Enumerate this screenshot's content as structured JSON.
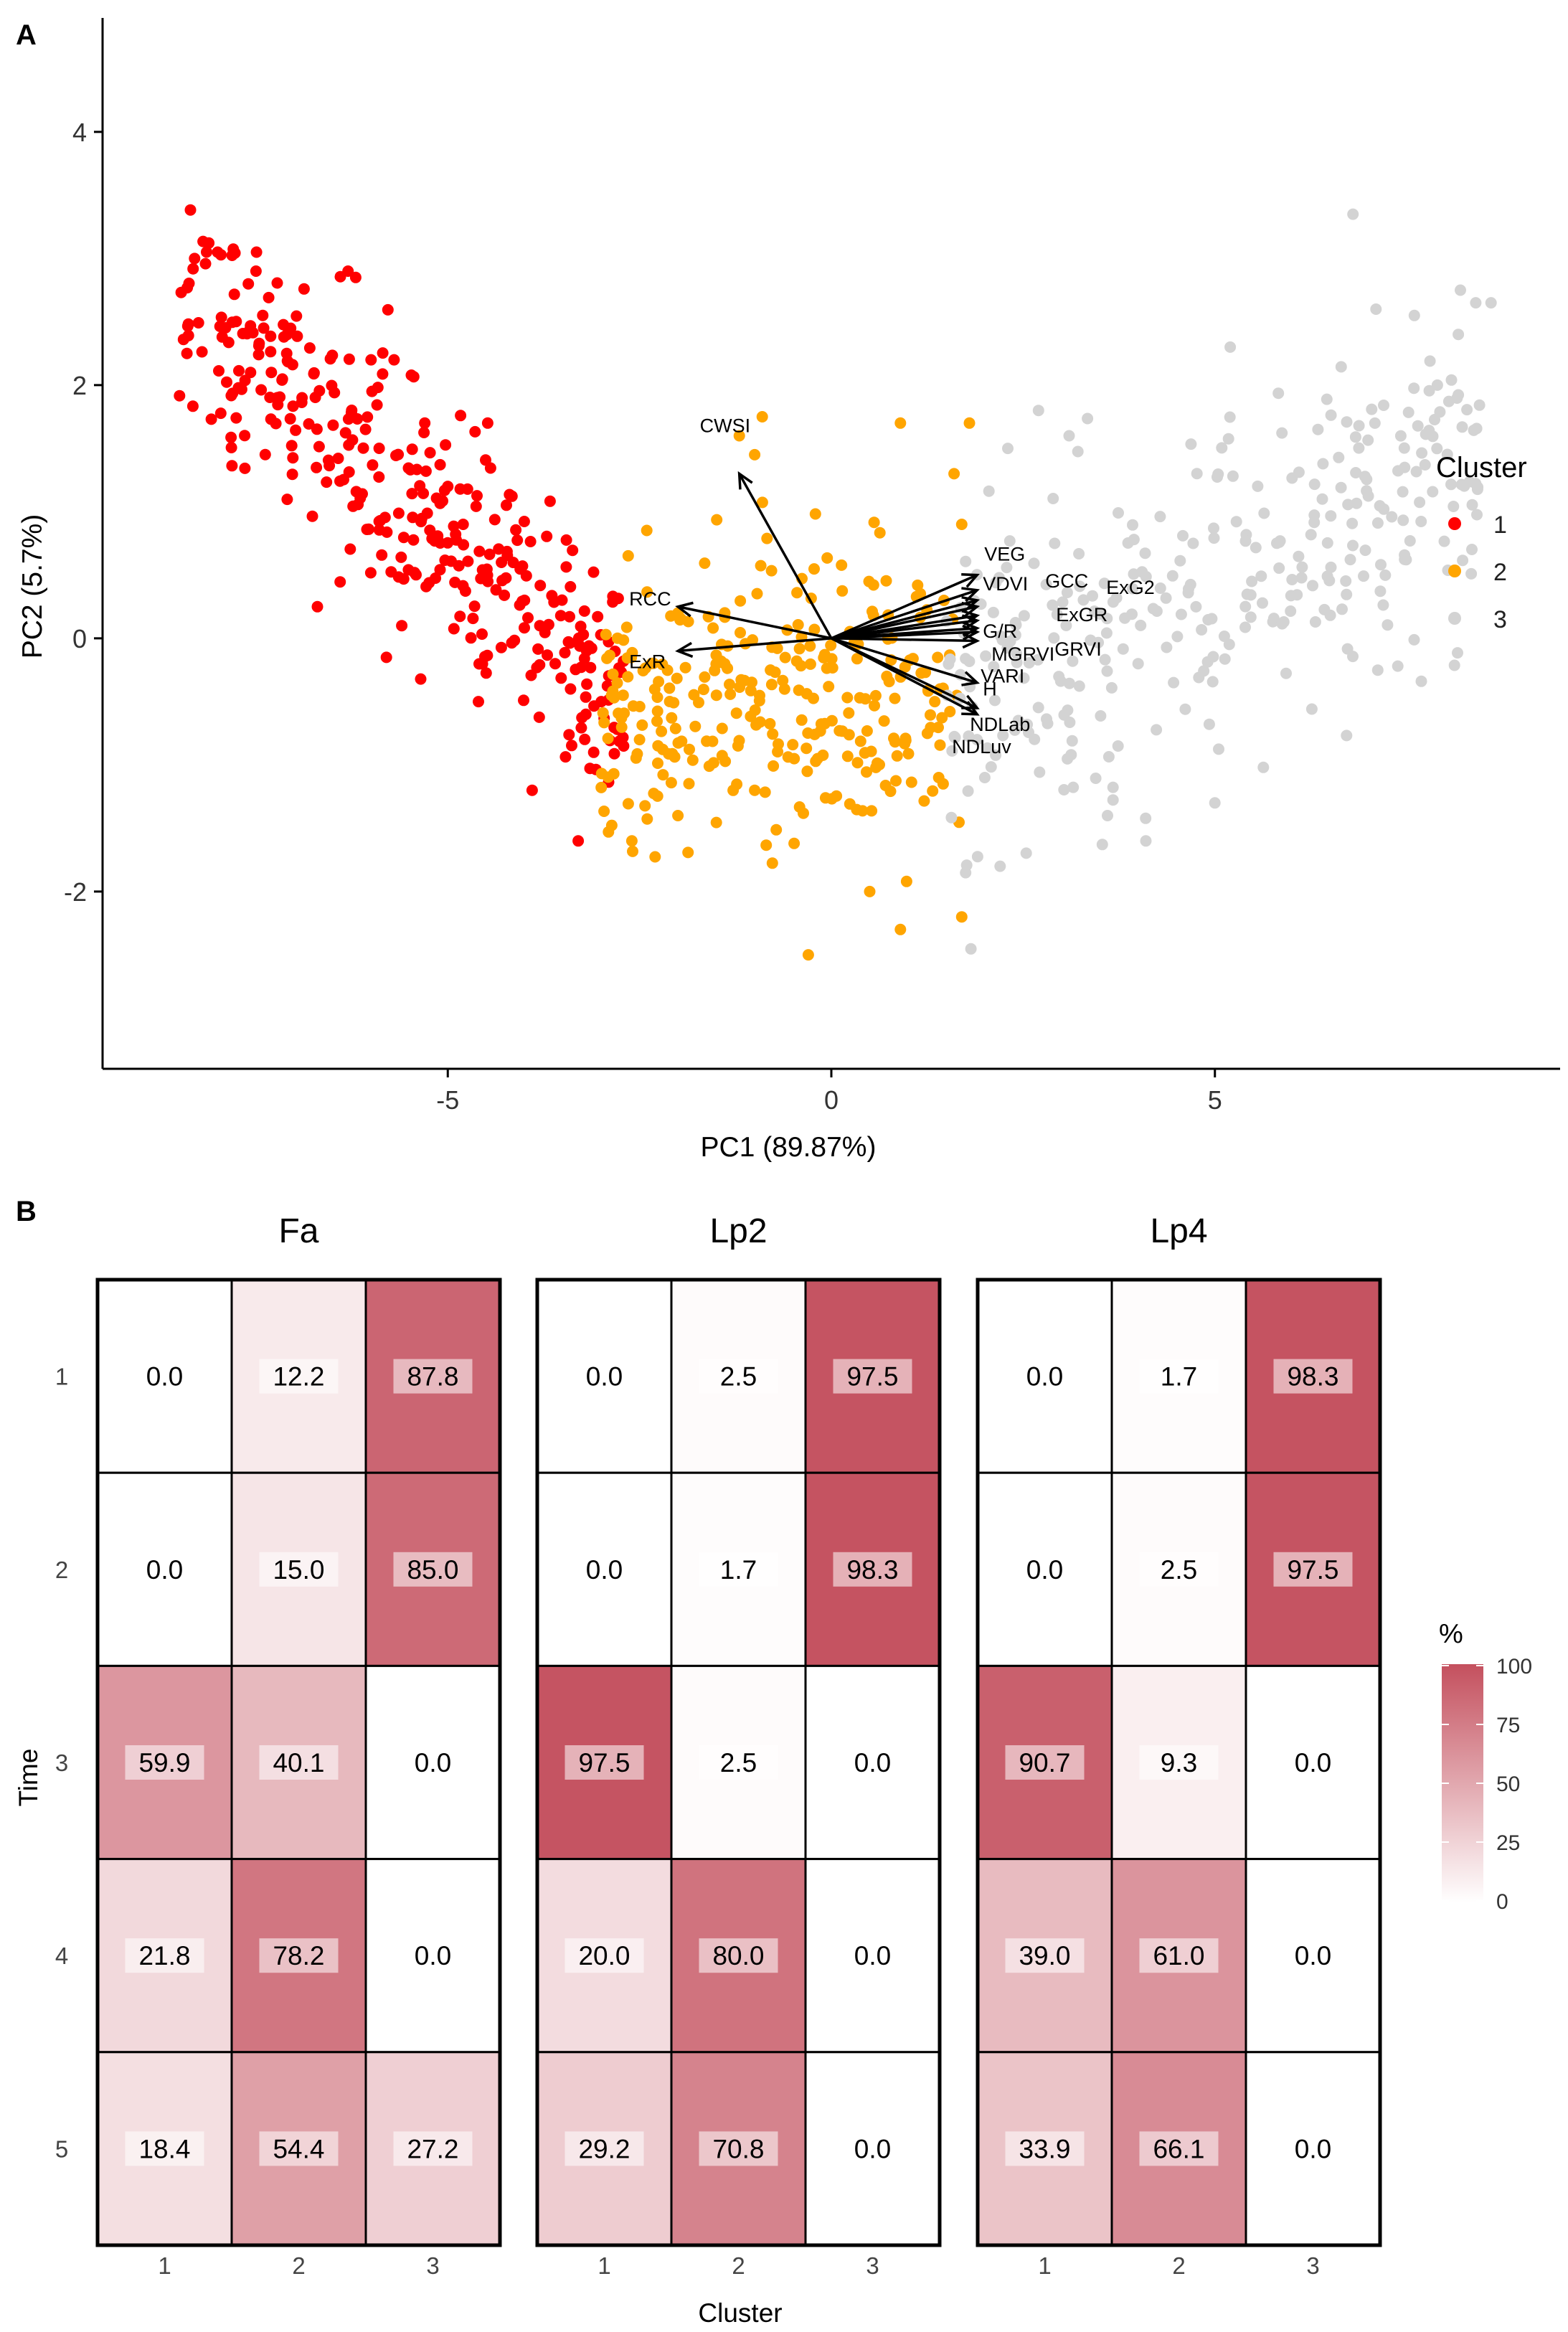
{
  "chart_data": [
    {
      "panel_label": "A",
      "type": "scatter",
      "subtype": "pca-biplot",
      "xlabel": "PC1 (89.87%)",
      "ylabel": "PC2 (5.7%)",
      "xlim": [
        -9.5,
        9.5
      ],
      "ylim": [
        -3.4,
        4.9
      ],
      "xticks": [
        -5,
        0,
        5
      ],
      "xtick_labels": [
        "-5",
        "0",
        "5"
      ],
      "yticks": [
        -2,
        0,
        2,
        4
      ],
      "ytick_labels": [
        "-2",
        "0",
        "2",
        "4"
      ],
      "grid": false,
      "legend": {
        "title": "Cluster",
        "position": "right",
        "entries": [
          {
            "label": "1",
            "color": "#ff0000"
          },
          {
            "label": "2",
            "color": "#ffa500"
          },
          {
            "label": "3",
            "color": "#d3d3d3"
          }
        ]
      },
      "series": [
        {
          "name": "1",
          "color": "#ff0000",
          "points": [
            [
              -8.4,
              2.25
            ],
            [
              -8.3,
              3.0
            ],
            [
              -8.0,
              3.05
            ],
            [
              -7.6,
              2.8
            ],
            [
              -7.5,
              2.9
            ],
            [
              -7.4,
              2.45
            ],
            [
              -7.3,
              2.1
            ],
            [
              -7.1,
              2.25
            ],
            [
              -6.9,
              1.9
            ],
            [
              -6.7,
              0.25
            ],
            [
              -6.3,
              2.9
            ],
            [
              -6.2,
              2.85
            ],
            [
              -6.0,
              2.2
            ],
            [
              -5.7,
              2.2
            ],
            [
              -5.3,
              1.7
            ],
            [
              -5.0,
              1.2
            ],
            [
              -4.8,
              0.9
            ],
            [
              -4.5,
              0.5
            ],
            [
              -4.3,
              0.6
            ],
            [
              -4.0,
              0.3
            ],
            [
              -3.8,
              0.1
            ],
            [
              -3.6,
              -0.2
            ],
            [
              -3.4,
              -0.4
            ],
            [
              -3.2,
              -0.6
            ],
            [
              -3.0,
              -0.5
            ],
            [
              -3.3,
              -1.6
            ],
            [
              -3.9,
              -1.2
            ],
            [
              -5.6,
              0.1
            ],
            [
              -5.8,
              -0.15
            ],
            [
              -4.6,
              -0.5
            ]
          ],
          "cloud": {
            "count": 330,
            "x_range": [
              -8.5,
              -2.7
            ],
            "trend": "descending",
            "spread": 0.5
          }
        },
        {
          "name": "2",
          "color": "#ffa500",
          "points": [
            [
              -1.2,
              1.6
            ],
            [
              -0.9,
              1.75
            ],
            [
              -1.0,
              1.45
            ],
            [
              0.9,
              1.7
            ],
            [
              1.8,
              1.7
            ],
            [
              1.7,
              0.9
            ],
            [
              1.6,
              1.3
            ],
            [
              -2.0,
              0.2
            ],
            [
              -2.5,
              -0.8
            ],
            [
              -1.0,
              -1.2
            ],
            [
              -0.3,
              -2.5
            ],
            [
              0.5,
              -2.0
            ],
            [
              0.9,
              -2.3
            ],
            [
              1.7,
              -2.2
            ],
            [
              -2.6,
              -1.6
            ],
            [
              -2.0,
              -1.4
            ],
            [
              1.4,
              -1.1
            ]
          ],
          "cloud": {
            "count": 290,
            "x_range": [
              -3.0,
              1.7
            ],
            "trend": "flat",
            "spread": 0.6
          }
        },
        {
          "name": "3",
          "color": "#d3d3d3",
          "points": [
            [
              6.8,
              3.35
            ],
            [
              8.2,
              2.75
            ],
            [
              8.4,
              2.65
            ],
            [
              8.6,
              2.65
            ],
            [
              7.1,
              2.6
            ],
            [
              7.6,
              2.55
            ],
            [
              5.2,
              2.3
            ],
            [
              7.9,
              2.0
            ],
            [
              6.4,
              1.1
            ],
            [
              2.3,
              1.5
            ],
            [
              2.7,
              1.8
            ],
            [
              3.1,
              1.6
            ],
            [
              2.0,
              -1.1
            ],
            [
              2.2,
              -1.8
            ],
            [
              3.6,
              -1.4
            ],
            [
              4.1,
              -1.6
            ],
            [
              5.0,
              -1.3
            ],
            [
              1.9,
              -0.8
            ]
          ],
          "cloud": {
            "count": 320,
            "x_range": [
              1.5,
              8.5
            ],
            "trend": "ascending",
            "spread": 0.65
          }
        }
      ],
      "loadings": [
        {
          "label": "CWSI",
          "x": -1.2,
          "y": 1.3
        },
        {
          "label": "RCC",
          "x": -2.0,
          "y": 0.25
        },
        {
          "label": "ExR",
          "x": -2.0,
          "y": -0.1
        },
        {
          "label": "VEG",
          "x": 1.9,
          "y": 0.5
        },
        {
          "label": "VDVI",
          "x": 1.9,
          "y": 0.38
        },
        {
          "label": "GCC",
          "x": 1.9,
          "y": 0.3
        },
        {
          "label": "ExG2",
          "x": 1.9,
          "y": 0.25
        },
        {
          "label": "ExGR",
          "x": 1.9,
          "y": 0.18
        },
        {
          "label": "G/R",
          "x": 1.9,
          "y": 0.14
        },
        {
          "label": "GRVI",
          "x": 1.9,
          "y": 0.08
        },
        {
          "label": "MGRVI",
          "x": 1.9,
          "y": 0.05
        },
        {
          "label": "VARI",
          "x": 1.9,
          "y": -0.02
        },
        {
          "label": "H",
          "x": 1.9,
          "y": -0.35
        },
        {
          "label": "NDLab",
          "x": 1.9,
          "y": -0.55
        },
        {
          "label": "NDLuv",
          "x": 1.9,
          "y": -0.6
        }
      ]
    },
    {
      "panel_label": "B",
      "type": "heatmap",
      "xlabel": "Cluster",
      "ylabel": "Time",
      "x_categories": [
        "1",
        "2",
        "3"
      ],
      "y_categories": [
        "1",
        "2",
        "3",
        "4",
        "5"
      ],
      "color_scale": {
        "title": "%",
        "min": 0,
        "max": 100,
        "low_color": "#ffffff",
        "high_color": "#c4505e",
        "ticks": [
          0,
          25,
          50,
          75,
          100
        ],
        "tick_labels": [
          "0",
          "25",
          "50",
          "75",
          "100"
        ]
      },
      "facets": [
        {
          "name": "Fa",
          "values": [
            [
              "0.0",
              "12.2",
              "87.8"
            ],
            [
              "0.0",
              "15.0",
              "85.0"
            ],
            [
              "59.9",
              "40.1",
              "0.0"
            ],
            [
              "21.8",
              "78.2",
              "0.0"
            ],
            [
              "18.4",
              "54.4",
              "27.2"
            ]
          ]
        },
        {
          "name": "Lp2",
          "values": [
            [
              "0.0",
              "2.5",
              "97.5"
            ],
            [
              "0.0",
              "1.7",
              "98.3"
            ],
            [
              "97.5",
              "2.5",
              "0.0"
            ],
            [
              "20.0",
              "80.0",
              "0.0"
            ],
            [
              "29.2",
              "70.8",
              "0.0"
            ]
          ]
        },
        {
          "name": "Lp4",
          "values": [
            [
              "0.0",
              "1.7",
              "98.3"
            ],
            [
              "0.0",
              "2.5",
              "97.5"
            ],
            [
              "90.7",
              "9.3",
              "0.0"
            ],
            [
              "39.0",
              "61.0",
              "0.0"
            ],
            [
              "33.9",
              "66.1",
              "0.0"
            ]
          ]
        }
      ]
    }
  ]
}
